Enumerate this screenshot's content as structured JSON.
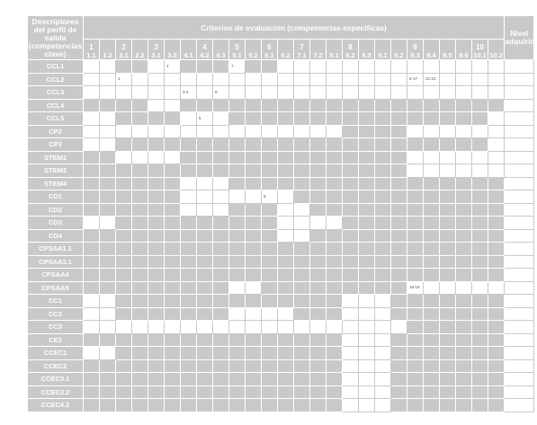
{
  "header": {
    "descriptor_title": "Descriptores del perfil de salida (competencias clave)",
    "criteria_title": "Criterios de evaluación (competencias específicas)",
    "level_title": "Nivel adquirido"
  },
  "groups": [
    {
      "num": "1",
      "subs": [
        "1.1",
        "1.2"
      ]
    },
    {
      "num": "2",
      "subs": [
        "2.1",
        "2.2"
      ]
    },
    {
      "num": "3",
      "subs": [
        "3.1",
        "3.2"
      ]
    },
    {
      "num": "4",
      "subs": [
        "4.1",
        "4.2",
        "4.3"
      ]
    },
    {
      "num": "5",
      "subs": [
        "5.1",
        "5.2"
      ]
    },
    {
      "num": "6",
      "subs": [
        "6.1",
        "6.2"
      ]
    },
    {
      "num": "7",
      "subs": [
        "7.1",
        "7.2"
      ]
    },
    {
      "num": "8",
      "subs": [
        "8.1",
        "8.2",
        "8.3"
      ]
    },
    {
      "num": "9",
      "subs": [
        "9.1",
        "9.2",
        "9.3",
        "9.4",
        "9.5",
        "9.6"
      ]
    },
    {
      "num": "10",
      "subs": [
        "10.1",
        "10.2"
      ]
    }
  ],
  "rows": [
    {
      "label": "CCL1",
      "marks": [
        0,
        1,
        2,
        3,
        4,
        5,
        6,
        7,
        8,
        9,
        10,
        11,
        12,
        13,
        14,
        15,
        16,
        17,
        18,
        19,
        20,
        21,
        22,
        23,
        24,
        25,
        26
      ],
      "notes": {
        "5": "2",
        "9": "7"
      }
    },
    {
      "label": "CCL2",
      "marks": [
        0,
        1,
        2,
        3,
        4,
        5,
        6,
        7,
        8,
        9,
        10,
        11,
        12,
        13,
        14,
        15,
        16,
        17,
        18,
        19,
        20,
        21,
        22,
        23,
        24,
        25,
        26
      ],
      "notes": {
        "2": "1",
        "20": "5-17",
        "21": "22-23"
      }
    },
    {
      "label": "CCL3",
      "marks": [
        0,
        1,
        2,
        3,
        4,
        5,
        6,
        7,
        8,
        9,
        10,
        11,
        12,
        13,
        14,
        15,
        16,
        17,
        18,
        19,
        20,
        21,
        22,
        23,
        24,
        25,
        26
      ],
      "notes": {
        "6": "3-4",
        "8": "6"
      }
    },
    {
      "label": "CCL4",
      "marks": [
        0,
        1,
        2,
        3,
        4,
        5,
        6,
        7,
        8,
        9,
        10,
        11,
        12,
        13,
        14,
        15,
        16,
        17,
        18,
        19,
        20,
        21,
        22,
        23,
        24,
        25,
        26
      ],
      "notes": {}
    },
    {
      "label": "CCL5",
      "marks": [
        0,
        1,
        2,
        3,
        4,
        5,
        6,
        7,
        8,
        9,
        10,
        11,
        12,
        13,
        14,
        15,
        16,
        17,
        18,
        19,
        20,
        21,
        22,
        23,
        24,
        25,
        26
      ],
      "notes": {
        "7": "5"
      }
    },
    {
      "label": "CP2",
      "marks": [
        0,
        1,
        2,
        3,
        4,
        5,
        6,
        7,
        8,
        9,
        10,
        11,
        12,
        13,
        14,
        15,
        16,
        17,
        18,
        19,
        20,
        21,
        22,
        23,
        24,
        25,
        26
      ],
      "notes": {}
    },
    {
      "label": "CP3",
      "marks": [
        0,
        1,
        2,
        3,
        4,
        5,
        6,
        7,
        8,
        9,
        10,
        11,
        12,
        13,
        14,
        15,
        16,
        17,
        18,
        19,
        20,
        21,
        22,
        23,
        24,
        25,
        26
      ],
      "notes": {}
    },
    {
      "label": "STEM1",
      "marks": [
        0,
        1,
        2,
        3,
        4,
        5,
        6,
        7,
        8,
        9,
        10,
        11,
        12,
        13,
        14,
        15,
        16,
        17,
        18,
        19,
        20,
        21,
        22,
        23,
        24,
        25,
        26
      ],
      "notes": {}
    },
    {
      "label": "STEM2",
      "marks": [
        0,
        1,
        2,
        3,
        4,
        5,
        6,
        7,
        8,
        9,
        10,
        11,
        12,
        13,
        14,
        15,
        16,
        17,
        18,
        19,
        20,
        21,
        22,
        23,
        24,
        25,
        26
      ],
      "notes": {}
    },
    {
      "label": "STEM4",
      "marks": [
        0,
        1,
        2,
        3,
        4,
        5,
        6,
        7,
        8,
        9,
        10,
        11,
        12,
        13,
        14,
        15,
        16,
        17,
        18,
        19,
        20,
        21,
        22,
        23,
        24,
        25,
        26
      ],
      "notes": {}
    },
    {
      "label": "CD1",
      "marks": [
        0,
        1,
        2,
        3,
        4,
        5,
        6,
        7,
        8,
        9,
        10,
        11,
        12,
        13,
        14,
        15,
        16,
        17,
        18,
        19,
        20,
        21,
        22,
        23,
        24,
        25,
        26
      ],
      "notes": {
        "11": "8"
      }
    },
    {
      "label": "CD2",
      "marks": [
        0,
        1,
        2,
        3,
        4,
        5,
        6,
        7,
        8,
        9,
        10,
        11,
        12,
        13,
        14,
        15,
        16,
        17,
        18,
        19,
        20,
        21,
        22,
        23,
        24,
        25,
        26
      ],
      "notes": {}
    },
    {
      "label": "CD3",
      "marks": [
        0,
        1,
        2,
        3,
        4,
        5,
        6,
        7,
        8,
        9,
        10,
        11,
        12,
        13,
        14,
        15,
        16,
        17,
        18,
        19,
        20,
        21,
        22,
        23,
        24,
        25,
        26
      ],
      "notes": {}
    },
    {
      "label": "CD4",
      "marks": [
        0,
        1,
        2,
        3,
        4,
        5,
        6,
        7,
        8,
        9,
        10,
        11,
        12,
        13,
        14,
        15,
        16,
        17,
        18,
        19,
        20,
        21,
        22,
        23,
        24,
        25,
        26
      ],
      "notes": {}
    },
    {
      "label": "CPSAA1.1",
      "marks": [
        0,
        1,
        2,
        3,
        4,
        5,
        6,
        7,
        8,
        9,
        10,
        11,
        12,
        13,
        14,
        15,
        16,
        17,
        18,
        19,
        20,
        21,
        22,
        23,
        24,
        25,
        26
      ],
      "notes": {}
    },
    {
      "label": "CPSAA3.1",
      "marks": [
        0,
        1,
        2,
        3,
        4,
        5,
        6,
        7,
        8,
        9,
        10,
        11,
        12,
        13,
        14,
        15,
        16,
        17,
        18,
        19,
        20,
        21,
        22,
        23,
        24,
        25,
        26
      ],
      "notes": {}
    },
    {
      "label": "CPSAA4",
      "marks": [
        0,
        1,
        2,
        3,
        4,
        5,
        6,
        7,
        8,
        9,
        10,
        11,
        12,
        13,
        14,
        15,
        16,
        17,
        18,
        19,
        20,
        21,
        22,
        23,
        24,
        25,
        26
      ],
      "notes": {}
    },
    {
      "label": "CPSAA5",
      "marks": [
        0,
        1,
        2,
        3,
        4,
        5,
        6,
        7,
        8,
        9,
        10,
        11,
        12,
        13,
        14,
        15,
        16,
        17,
        18,
        19,
        20,
        21,
        22,
        23,
        24,
        25,
        26
      ],
      "notes": {
        "20": "18-19"
      }
    },
    {
      "label": "CC1",
      "marks": [
        0,
        1,
        2,
        3,
        4,
        5,
        6,
        7,
        8,
        9,
        10,
        11,
        12,
        13,
        14,
        15,
        16,
        17,
        18,
        19,
        20,
        21,
        22,
        23,
        24,
        25,
        26
      ],
      "notes": {}
    },
    {
      "label": "CC2",
      "marks": [
        0,
        1,
        2,
        3,
        4,
        5,
        6,
        7,
        8,
        9,
        10,
        11,
        12,
        13,
        14,
        15,
        16,
        17,
        18,
        19,
        20,
        21,
        22,
        23,
        24,
        25,
        26
      ],
      "notes": {}
    },
    {
      "label": "CC3",
      "marks": [
        0,
        1,
        2,
        3,
        4,
        5,
        6,
        7,
        8,
        9,
        10,
        11,
        12,
        13,
        14,
        15,
        16,
        17,
        18,
        19,
        20,
        21,
        22,
        23,
        24,
        25,
        26
      ],
      "notes": {}
    },
    {
      "label": "CE3",
      "marks": [
        0,
        1,
        2,
        3,
        4,
        5,
        6,
        7,
        8,
        9,
        10,
        11,
        12,
        13,
        14,
        15,
        16,
        17,
        18,
        19,
        20,
        21,
        22,
        23,
        24,
        25,
        26
      ],
      "notes": {}
    },
    {
      "label": "CCEC1",
      "marks": [
        0,
        1,
        2,
        3,
        4,
        5,
        6,
        7,
        8,
        9,
        10,
        11,
        12,
        13,
        14,
        15,
        16,
        17,
        18,
        19,
        20,
        21,
        22,
        23,
        24,
        25,
        26
      ],
      "notes": {}
    },
    {
      "label": "CCEC2",
      "marks": [
        0,
        1,
        2,
        3,
        4,
        5,
        6,
        7,
        8,
        9,
        10,
        11,
        12,
        13,
        14,
        15,
        16,
        17,
        18,
        19,
        20,
        21,
        22,
        23,
        24,
        25,
        26
      ],
      "notes": {}
    },
    {
      "label": "CCEC3.1",
      "marks": [
        0,
        1,
        2,
        3,
        4,
        5,
        6,
        7,
        8,
        9,
        10,
        11,
        12,
        13,
        14,
        15,
        16,
        17,
        18,
        19,
        20,
        21,
        22,
        23,
        24,
        25,
        26
      ],
      "notes": {}
    },
    {
      "label": "CCEC3.2",
      "marks": [
        0,
        1,
        2,
        3,
        4,
        5,
        6,
        7,
        8,
        9,
        10,
        11,
        12,
        13,
        14,
        15,
        16,
        17,
        18,
        19,
        20,
        21,
        22,
        23,
        24,
        25,
        26
      ],
      "notes": {}
    },
    {
      "label": "CCEC4.2",
      "marks": [
        0,
        1,
        2,
        3,
        4,
        5,
        6,
        7,
        8,
        9,
        10,
        11,
        12,
        13,
        14,
        15,
        16,
        17,
        18,
        19,
        20,
        21,
        22,
        23,
        24,
        25,
        26
      ],
      "notes": {}
    }
  ],
  "marked": {
    "CCL1": [
      0,
      1,
      4,
      5,
      9,
      12,
      13,
      14,
      15,
      16,
      17,
      18,
      19,
      20,
      21,
      22,
      23,
      24,
      25
    ],
    "CCL2": [
      0,
      1,
      2,
      3,
      4,
      5,
      6,
      7,
      8,
      9,
      10,
      11,
      12,
      13,
      14,
      15,
      16,
      17,
      18,
      19,
      20,
      21,
      22,
      23,
      24,
      25
    ],
    "CCL3": [
      0,
      1,
      2,
      3,
      4,
      5,
      6,
      7,
      8,
      9,
      10,
      11,
      12,
      13,
      14,
      15,
      16,
      17,
      18,
      19,
      20,
      21,
      22,
      23,
      24,
      25
    ],
    "CCL4": [
      4,
      5
    ],
    "CCL5": [
      0,
      1,
      6,
      7,
      8,
      25,
      26
    ],
    "CP2": [
      0,
      1,
      2,
      3,
      4,
      5,
      6,
      7,
      8,
      9,
      10,
      11,
      12,
      13,
      14,
      15,
      20,
      21,
      22,
      23,
      24,
      25,
      26
    ],
    "CP3": [
      0,
      1,
      25,
      26
    ],
    "STEM1": [
      2,
      3,
      4,
      5,
      20,
      21,
      22,
      23,
      24,
      25
    ],
    "STEM2": [
      20,
      21,
      22,
      23,
      24,
      25
    ],
    "STEM4": [
      6,
      7,
      8
    ],
    "CD1": [
      6,
      7,
      8,
      9,
      10,
      11,
      12
    ],
    "CD2": [
      6,
      7,
      8,
      12,
      13
    ],
    "CD3": [
      0,
      1,
      12,
      13,
      14,
      15
    ],
    "CD4": [
      12,
      13
    ],
    "CPSAA1.1": [],
    "CPSAA3.1": [],
    "CPSAA4": [],
    "CPSAA5": [
      9,
      10,
      20,
      21,
      22,
      23,
      24,
      25
    ],
    "CC1": [
      0,
      1,
      16,
      17,
      18
    ],
    "CC2": [
      0,
      1,
      9,
      10,
      11,
      12,
      16,
      17,
      18
    ],
    "CC3": [
      0,
      1,
      2,
      3,
      4,
      5,
      6,
      7,
      8,
      9,
      10,
      11,
      12,
      13,
      14,
      15,
      16,
      17,
      18,
      19
    ],
    "CE3": [
      16,
      17,
      18
    ],
    "CCEC1": [
      0,
      1,
      16,
      17,
      18
    ],
    "CCEC2": [
      16,
      17,
      18
    ],
    "CCEC3.1": [
      16,
      17,
      18
    ],
    "CCEC3.2": [
      16,
      17,
      18
    ],
    "CCEC4.2": [
      16,
      17,
      18
    ]
  }
}
